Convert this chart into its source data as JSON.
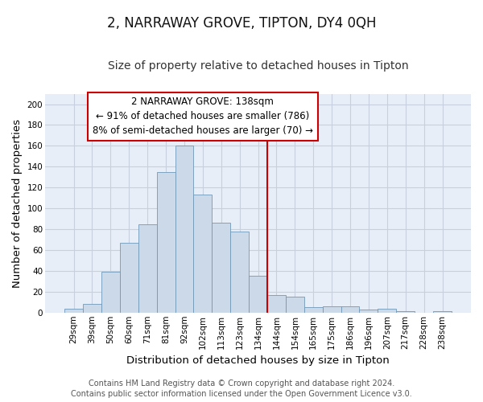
{
  "title": "2, NARRAWAY GROVE, TIPTON, DY4 0QH",
  "subtitle": "Size of property relative to detached houses in Tipton",
  "xlabel": "Distribution of detached houses by size in Tipton",
  "ylabel": "Number of detached properties",
  "bar_labels": [
    "29sqm",
    "39sqm",
    "50sqm",
    "60sqm",
    "71sqm",
    "81sqm",
    "92sqm",
    "102sqm",
    "113sqm",
    "123sqm",
    "134sqm",
    "144sqm",
    "154sqm",
    "165sqm",
    "175sqm",
    "186sqm",
    "196sqm",
    "207sqm",
    "217sqm",
    "228sqm",
    "238sqm"
  ],
  "bar_values": [
    4,
    8,
    39,
    67,
    85,
    135,
    160,
    113,
    86,
    78,
    35,
    17,
    15,
    5,
    6,
    6,
    3,
    4,
    1,
    0,
    1
  ],
  "bar_color": "#ccd9e8",
  "bar_edgecolor": "#7098b8",
  "vline_x_index": 11,
  "vline_color": "#cc0000",
  "ylim": [
    0,
    210
  ],
  "yticks": [
    0,
    20,
    40,
    60,
    80,
    100,
    120,
    140,
    160,
    180,
    200
  ],
  "annotation_title": "2 NARRAWAY GROVE: 138sqm",
  "annotation_line1": "← 91% of detached houses are smaller (786)",
  "annotation_line2": "8% of semi-detached houses are larger (70) →",
  "annotation_box_edgecolor": "#cc0000",
  "annotation_box_facecolor": "#ffffff",
  "footer_line1": "Contains HM Land Registry data © Crown copyright and database right 2024.",
  "footer_line2": "Contains public sector information licensed under the Open Government Licence v3.0.",
  "fig_facecolor": "#ffffff",
  "plot_facecolor": "#e8eef8",
  "grid_color": "#c8d0e0",
  "title_fontsize": 12,
  "subtitle_fontsize": 10,
  "axis_label_fontsize": 9.5,
  "tick_fontsize": 7.5,
  "footer_fontsize": 7,
  "annotation_fontsize": 8.5
}
